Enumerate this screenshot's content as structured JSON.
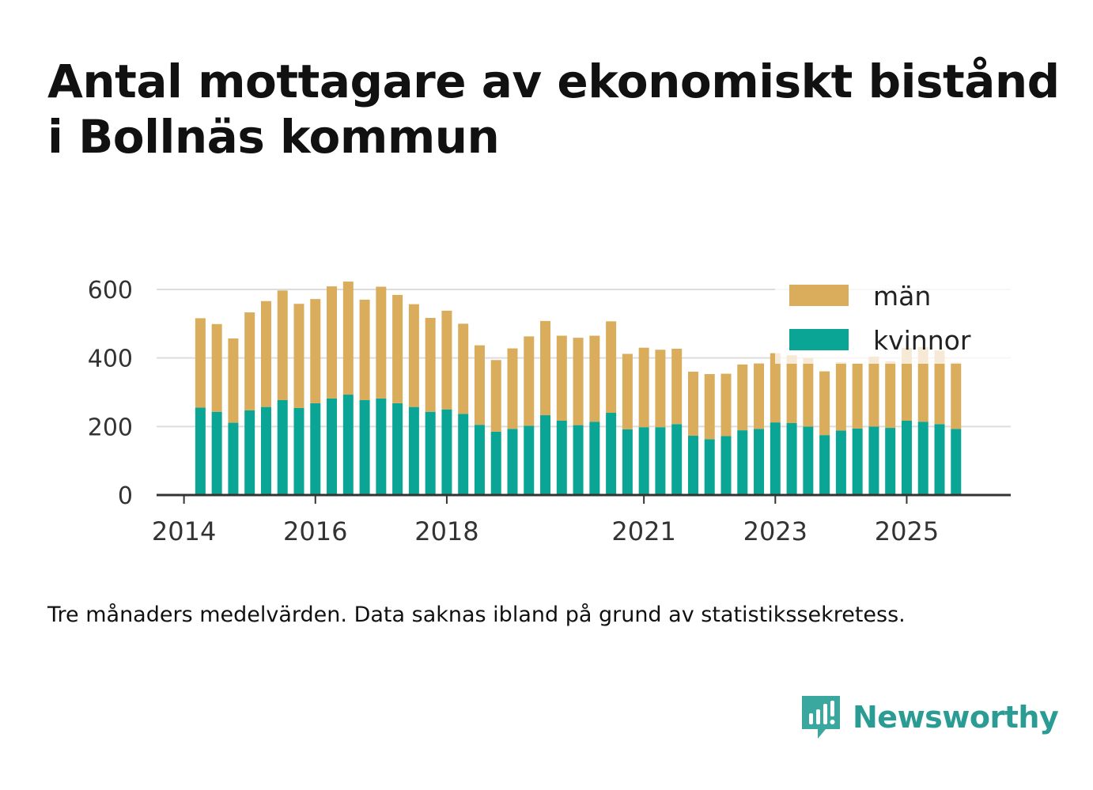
{
  "header": {
    "title_line1": "Antal mottagare av ekonomiskt bistånd",
    "title_line2": "i Bollnäs kommun"
  },
  "footer": {
    "note": "Tre månaders medelvärden. Data saknas ibland på grund av statistikssekretess.",
    "brand": "Newsworthy"
  },
  "colors": {
    "man": "#d9ad5c",
    "kvinnor": "#0aa595",
    "grid": "#dddddd",
    "axis": "#333333",
    "brand": "#2a9c94"
  },
  "icons": {
    "brand_logo": "newsworthy-logo-icon"
  },
  "chart_data": {
    "type": "bar",
    "stacked": true,
    "title": "Antal mottagare av ekonomiskt bistånd i Bollnäs kommun",
    "xlabel": "",
    "ylabel": "",
    "ylim": [
      0,
      640
    ],
    "yticks": [
      0,
      200,
      400,
      600
    ],
    "xtick_labels": [
      "2014",
      "2016",
      "2018",
      "2021",
      "2023",
      "2025"
    ],
    "xtick_dates": [
      "2014-01",
      "2016-01",
      "2018-01",
      "2021-01",
      "2023-01",
      "2025-01"
    ],
    "x_range": [
      "2013-08",
      "2026-08"
    ],
    "grid": true,
    "legend_position": "top-right",
    "categories": [
      "2014-04",
      "2014-07",
      "2014-10",
      "2015-01",
      "2015-04",
      "2015-07",
      "2015-10",
      "2016-01",
      "2016-04",
      "2016-07",
      "2016-10",
      "2017-01",
      "2017-04",
      "2017-07",
      "2017-10",
      "2018-01",
      "2018-04",
      "2018-07",
      "2018-10",
      "2019-01",
      "2019-04",
      "2019-07",
      "2019-10",
      "2020-01",
      "2020-04",
      "2020-07",
      "2020-10",
      "2021-01",
      "2021-04",
      "2021-07",
      "2021-10",
      "2022-01",
      "2022-04",
      "2022-07",
      "2022-10",
      "2023-01",
      "2023-04",
      "2023-07",
      "2023-10",
      "2024-01",
      "2024-04",
      "2024-07",
      "2024-10",
      "2025-01",
      "2025-04",
      "2025-07",
      "2025-10"
    ],
    "series": [
      {
        "name": "kvinnor",
        "values": [
          255,
          243,
          211,
          247,
          257,
          277,
          254,
          268,
          282,
          293,
          277,
          282,
          268,
          257,
          243,
          250,
          237,
          205,
          185,
          193,
          202,
          233,
          217,
          204,
          214,
          240,
          192,
          198,
          198,
          207,
          173,
          163,
          172,
          189,
          193,
          212,
          210,
          200,
          175,
          188,
          194,
          200,
          196,
          217,
          214,
          207,
          193
        ]
      },
      {
        "name": "män",
        "values": [
          261,
          256,
          246,
          286,
          309,
          320,
          304,
          304,
          327,
          330,
          293,
          326,
          316,
          300,
          274,
          288,
          263,
          232,
          209,
          235,
          261,
          275,
          248,
          255,
          251,
          267,
          220,
          232,
          226,
          220,
          187,
          190,
          182,
          192,
          191,
          202,
          198,
          200,
          186,
          200,
          190,
          204,
          194,
          212,
          218,
          215,
          194
        ]
      }
    ],
    "faded_values": [
      false,
      false,
      false,
      false,
      false,
      false,
      false,
      false,
      false,
      false,
      false,
      false,
      false,
      false,
      false,
      false,
      false,
      false,
      false,
      false,
      false,
      false,
      false,
      false,
      false,
      false,
      false,
      false,
      false,
      false,
      false,
      false,
      false,
      false,
      false,
      false,
      false,
      false,
      false,
      false,
      false,
      false,
      false,
      false,
      false,
      false,
      false
    ]
  }
}
